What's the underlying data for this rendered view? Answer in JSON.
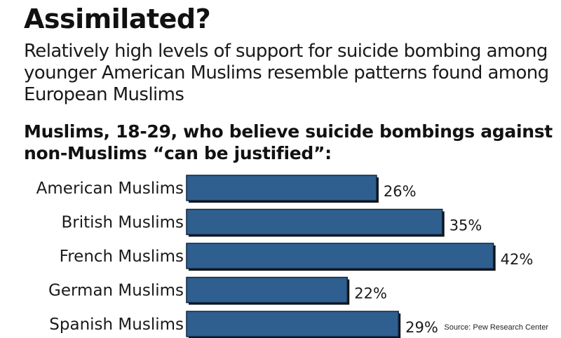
{
  "header": {
    "title": "Assimilated?",
    "subtitle": "Relatively high levels of support for suicide bombing among younger American Muslims resemble patterns found among European Muslims",
    "chart_heading": "Muslims, 18-29, who believe suicide bombings against non-Muslims “can be justified”:"
  },
  "footer": {
    "source": "Source: Pew Research Center"
  },
  "colors": {
    "bar_fill": "#2f5f8f",
    "bar_border": "#0e2742",
    "bar_shadow": "#111111"
  },
  "chart_data": {
    "type": "bar",
    "orientation": "horizontal",
    "title": "Muslims, 18-29, who believe suicide bombings against non-Muslims “can be justified”:",
    "categories": [
      "American Muslims",
      "British Muslims",
      "French Muslims",
      "German Muslims",
      "Spanish Muslims"
    ],
    "values": [
      26,
      35,
      42,
      22,
      29
    ],
    "value_labels": [
      "26%",
      "35%",
      "42%",
      "22%",
      "29%"
    ],
    "unit": "%",
    "grid": false,
    "legend": "none"
  }
}
